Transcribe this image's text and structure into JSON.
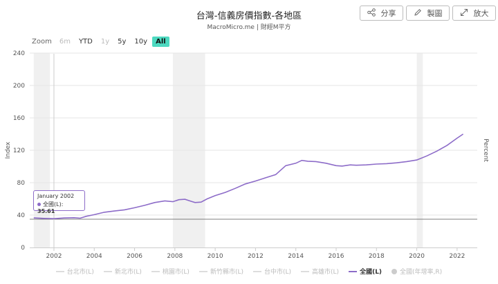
{
  "header": {
    "title": "台灣-信義房價指數-各地區",
    "subtitle": "MacroMicro.me | 財經M平方"
  },
  "toolbar": {
    "share_label": "分享",
    "draw_label": "製圖",
    "expand_label": "放大"
  },
  "zoom": {
    "label": "Zoom",
    "buttons": [
      {
        "label": "6m",
        "state": "disabled"
      },
      {
        "label": "YTD",
        "state": "normal"
      },
      {
        "label": "1y",
        "state": "disabled"
      },
      {
        "label": "5y",
        "state": "normal"
      },
      {
        "label": "10y",
        "state": "normal"
      },
      {
        "label": "All",
        "state": "active"
      }
    ]
  },
  "tooltip": {
    "date": "January 2002",
    "series": "全國(L):",
    "value": "35.61"
  },
  "legend": [
    {
      "label": "台北市(L)",
      "active": false
    },
    {
      "label": "新北市(L)",
      "active": false
    },
    {
      "label": "桃園市(L)",
      "active": false
    },
    {
      "label": "新竹縣市(L)",
      "active": false
    },
    {
      "label": "台中市(L)",
      "active": false
    },
    {
      "label": "高雄市(L)",
      "active": false
    },
    {
      "label": "全國(L)",
      "active": true
    },
    {
      "label": "全國(年增率,R)",
      "active": false,
      "marker": "dot"
    }
  ],
  "chart_data": {
    "type": "line",
    "ylabel": "Index",
    "ylabel_right": "Percent",
    "ylim": [
      0,
      240
    ],
    "yticks": [
      0,
      40,
      80,
      120,
      160,
      200,
      240
    ],
    "xlim": [
      2000.8,
      2023.0
    ],
    "xticks": [
      2002,
      2004,
      2006,
      2008,
      2010,
      2012,
      2014,
      2016,
      2018,
      2020,
      2022
    ],
    "line_color": "#8c6bc8",
    "shaded_periods": [
      [
        2001.0,
        2001.8
      ],
      [
        2007.9,
        2009.5
      ],
      [
        2020.0,
        2020.3
      ]
    ],
    "crosshair_x": 2002.0,
    "series": [
      {
        "name": "全國(L)",
        "x": [
          2001.0,
          2001.5,
          2002.0,
          2002.5,
          2003.0,
          2003.3,
          2003.6,
          2004.0,
          2004.5,
          2005.0,
          2005.5,
          2006.0,
          2006.5,
          2007.0,
          2007.5,
          2007.9,
          2008.2,
          2008.5,
          2008.8,
          2009.0,
          2009.3,
          2009.6,
          2010.0,
          2010.5,
          2011.0,
          2011.5,
          2012.0,
          2012.5,
          2013.0,
          2013.5,
          2014.0,
          2014.3,
          2014.6,
          2015.0,
          2015.5,
          2016.0,
          2016.3,
          2016.7,
          2017.0,
          2017.5,
          2018.0,
          2018.5,
          2019.0,
          2019.5,
          2020.0,
          2020.5,
          2021.0,
          2021.5,
          2022.0,
          2022.3
        ],
        "y": [
          36.5,
          35.9,
          35.6,
          36.4,
          36.8,
          36.2,
          38.5,
          40.5,
          43.5,
          45.0,
          46.5,
          49.0,
          52.0,
          55.5,
          57.5,
          56.5,
          59.0,
          59.5,
          57.0,
          55.5,
          56.0,
          60.0,
          64.0,
          68.0,
          73.0,
          78.5,
          82.0,
          86.0,
          90.0,
          101.0,
          104.0,
          107.5,
          106.5,
          106.0,
          104.0,
          101.0,
          100.5,
          102.0,
          101.5,
          102.0,
          103.0,
          103.5,
          104.5,
          106.0,
          108.0,
          113.0,
          119.0,
          126.0,
          135.0,
          140.0
        ]
      }
    ]
  }
}
